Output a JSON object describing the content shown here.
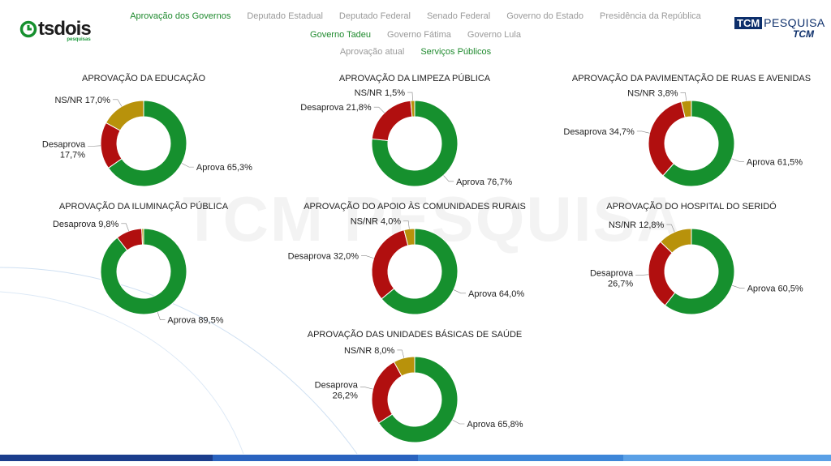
{
  "brand": {
    "logo_text": "tsdois",
    "logo_sub": "pesquisas",
    "partner_tcm": "TCM",
    "partner_pesquisa": "PESQUISA",
    "partner_sub": "TCM"
  },
  "watermark": "TCM PESQUISA",
  "nav": {
    "row1": [
      {
        "label": "Aprovação dos Governos",
        "active": true
      },
      {
        "label": "Deputado Estadual",
        "active": false
      },
      {
        "label": "Deputado Federal",
        "active": false
      },
      {
        "label": "Senado Federal",
        "active": false
      },
      {
        "label": "Governo do Estado",
        "active": false
      },
      {
        "label": "Presidência da República",
        "active": false
      }
    ],
    "row2": [
      {
        "label": "Governo Tadeu",
        "active": true
      },
      {
        "label": "Governo Fátima",
        "active": false
      },
      {
        "label": "Governo Lula",
        "active": false
      }
    ],
    "row3": [
      {
        "label": "Aprovação atual",
        "active": false
      },
      {
        "label": "Serviços Públicos",
        "active": true
      }
    ]
  },
  "colors": {
    "aprova": "#16902e",
    "desaprova": "#b10f0f",
    "nsnr": "#b8920b",
    "accent": "#1f8a2e",
    "bottom_bar": [
      "#1b3d8c",
      "#2a63bf",
      "#3d86d8",
      "#5aa0e6"
    ]
  },
  "chart_data": [
    {
      "type": "donut",
      "title": "APROVAÇÃO DA EDUCAÇÃO",
      "slices": [
        {
          "name": "Aprova",
          "value": 65.3,
          "label": "Aprova 65,3%"
        },
        {
          "name": "Desaprova",
          "value": 17.7,
          "label": "Desaprova 17,7%"
        },
        {
          "name": "NS/NR",
          "value": 17.0,
          "label": "NS/NR 17,0%"
        }
      ]
    },
    {
      "type": "donut",
      "title": "APROVAÇÃO DA LIMPEZA PÚBLICA",
      "slices": [
        {
          "name": "Aprova",
          "value": 76.7,
          "label": "Aprova 76,7%"
        },
        {
          "name": "Desaprova",
          "value": 21.8,
          "label": "Desaprova 21,8%"
        },
        {
          "name": "NS/NR",
          "value": 1.5,
          "label": "NS/NR 1,5%"
        }
      ]
    },
    {
      "type": "donut",
      "title": "APROVAÇÃO DA PAVIMENTAÇÃO DE RUAS E AVENIDAS",
      "slices": [
        {
          "name": "Aprova",
          "value": 61.5,
          "label": "Aprova 61,5%"
        },
        {
          "name": "Desaprova",
          "value": 34.7,
          "label": "Desaprova 34,7%"
        },
        {
          "name": "NS/NR",
          "value": 3.8,
          "label": "NS/NR 3,8%"
        }
      ]
    },
    {
      "type": "donut",
      "title": "APROVAÇÃO DA ILUMINAÇÃO PÚBLICA",
      "slices": [
        {
          "name": "Aprova",
          "value": 89.5,
          "label": "Aprova 89,5%"
        },
        {
          "name": "Desaprova",
          "value": 9.8,
          "label": "Desaprova 9,8%"
        },
        {
          "name": "NS/NR",
          "value": 0.7,
          "label": ""
        }
      ]
    },
    {
      "type": "donut",
      "title": "APROVAÇÃO DO APOIO ÀS COMUNIDADES RURAIS",
      "slices": [
        {
          "name": "Aprova",
          "value": 64.0,
          "label": "Aprova 64,0%"
        },
        {
          "name": "Desaprova",
          "value": 32.0,
          "label": "Desaprova 32,0%"
        },
        {
          "name": "NS/NR",
          "value": 4.0,
          "label": "NS/NR 4,0%"
        }
      ]
    },
    {
      "type": "donut",
      "title": "APROVAÇÃO DO HOSPITAL DO SERIDÓ",
      "slices": [
        {
          "name": "Aprova",
          "value": 60.5,
          "label": "Aprova 60,5%"
        },
        {
          "name": "Desaprova",
          "value": 26.7,
          "label": "Desaprova 26,7%"
        },
        {
          "name": "NS/NR",
          "value": 12.8,
          "label": "NS/NR 12,8%"
        }
      ]
    },
    {
      "type": "donut",
      "title": "APROVAÇÃO DAS UNIDADES BÁSICAS DE SAÚDE",
      "slices": [
        {
          "name": "Aprova",
          "value": 65.8,
          "label": "Aprova 65,8%"
        },
        {
          "name": "Desaprova",
          "value": 26.2,
          "label": "Desaprova 26,2%"
        },
        {
          "name": "NS/NR",
          "value": 8.0,
          "label": "NS/NR 8,0%"
        }
      ]
    }
  ]
}
